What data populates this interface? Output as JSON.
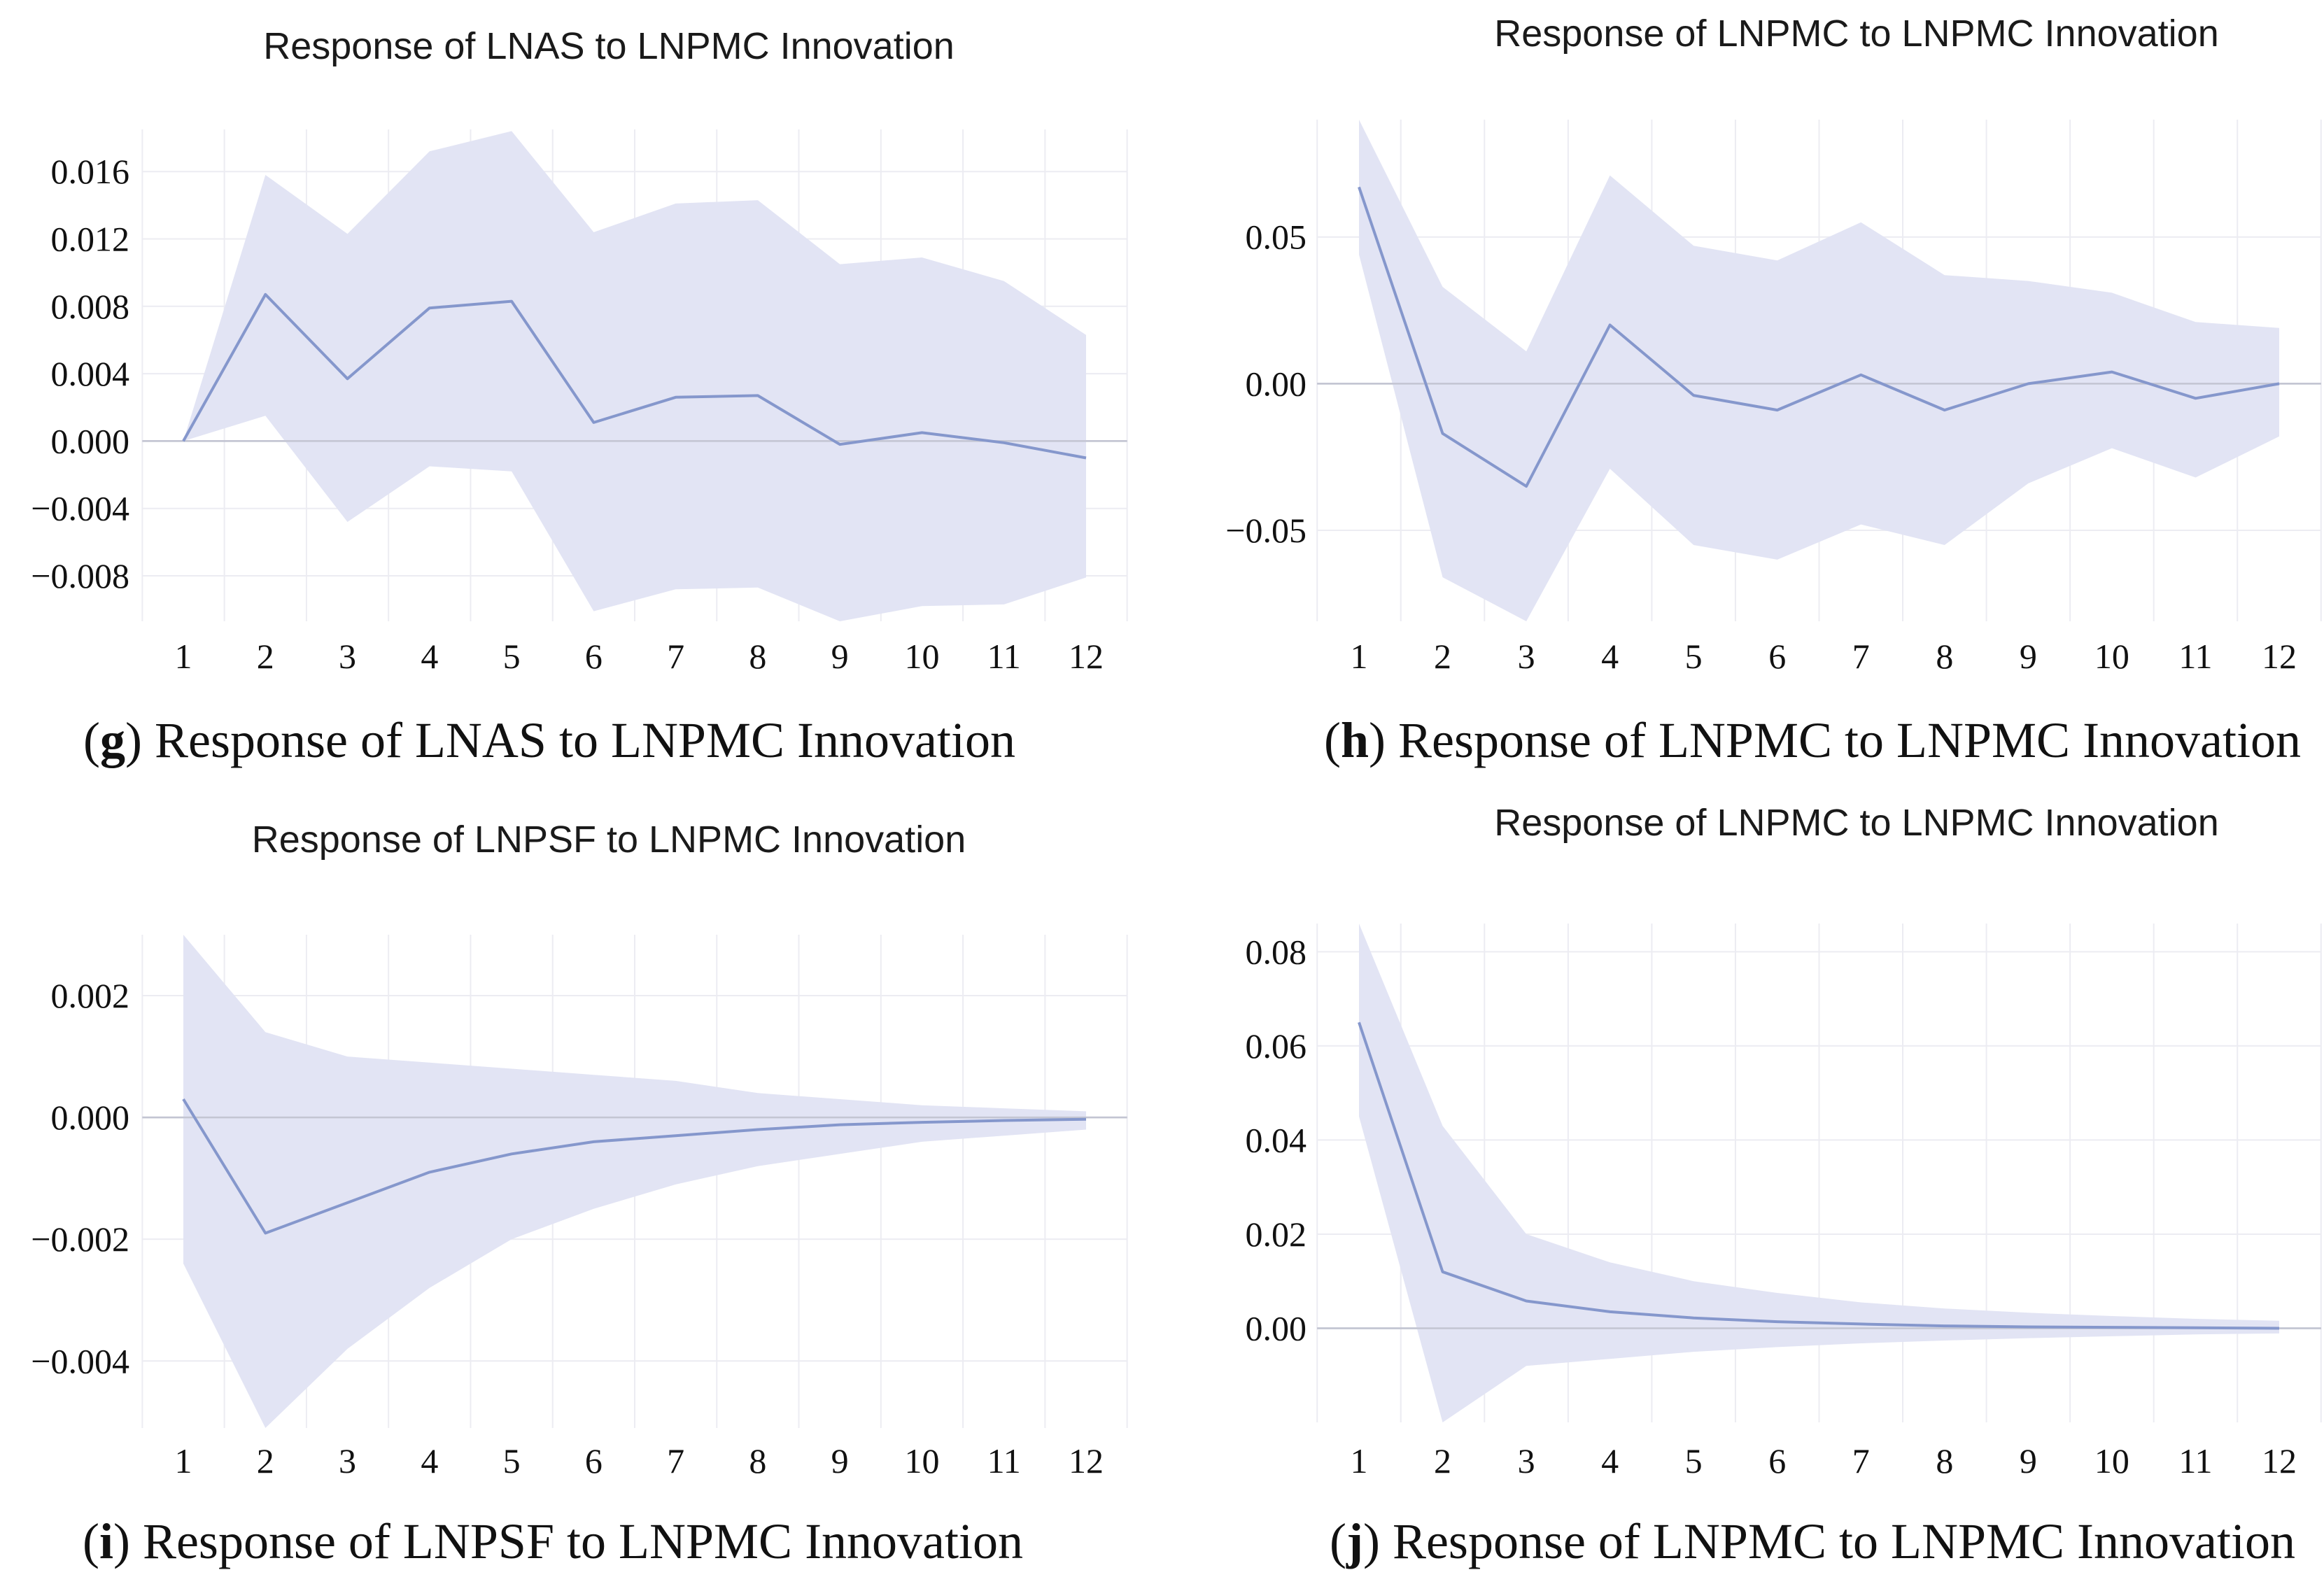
{
  "chart_data": [
    {
      "id": "g",
      "type": "line",
      "title": "Response of LNAS to LNPMC Innovation",
      "caption_label": "g",
      "caption_text": "Response of LNAS to LNPMC Innovation",
      "x": [
        1,
        2,
        3,
        4,
        5,
        6,
        7,
        8,
        9,
        10,
        11,
        12
      ],
      "x_tick_labels": [
        "1",
        "2",
        "3",
        "4",
        "5",
        "6",
        "7",
        "8",
        "9",
        "10",
        "11",
        "12"
      ],
      "y_ticks": [
        0.016,
        0.012,
        0.008,
        0.004,
        0.0,
        -0.004,
        -0.008
      ],
      "y_tick_labels": [
        "0.016",
        "0.012",
        "0.008",
        "0.004",
        "0.000",
        "−0.004",
        "−0.008"
      ],
      "ylim": [
        -0.0107,
        0.0185
      ],
      "series": [
        {
          "name": "response",
          "values": [
            0.0,
            0.0087,
            0.0037,
            0.0079,
            0.0083,
            0.0011,
            0.0026,
            0.0027,
            -0.0002,
            0.0005,
            -0.0001,
            -0.001
          ]
        },
        {
          "name": "upper",
          "values": [
            0.0,
            0.0158,
            0.0123,
            0.0172,
            0.0184,
            0.0124,
            0.0141,
            0.0143,
            0.0105,
            0.0109,
            0.0095,
            0.0063
          ]
        },
        {
          "name": "lower",
          "values": [
            0.0,
            0.0015,
            -0.0048,
            -0.0015,
            -0.0018,
            -0.0101,
            -0.0088,
            -0.0087,
            -0.0107,
            -0.0098,
            -0.0097,
            -0.0081
          ]
        }
      ]
    },
    {
      "id": "h",
      "type": "line",
      "title": "Response of LNPMC to LNPMC Innovation",
      "caption_label": "h",
      "caption_text": "Response of LNPMC to LNPMC Innovation",
      "x": [
        1,
        2,
        3,
        4,
        5,
        6,
        7,
        8,
        9,
        10,
        11,
        12
      ],
      "x_tick_labels": [
        "1",
        "2",
        "3",
        "4",
        "5",
        "6",
        "7",
        "8",
        "9",
        "10",
        "11",
        "12"
      ],
      "y_ticks": [
        0.05,
        0.0,
        -0.05
      ],
      "y_tick_labels": [
        "0.05",
        "0.00",
        "−0.05"
      ],
      "ylim": [
        -0.081,
        0.09
      ],
      "series": [
        {
          "name": "response",
          "values": [
            0.067,
            -0.017,
            -0.035,
            0.02,
            -0.004,
            -0.009,
            0.003,
            -0.009,
            0.0,
            0.004,
            -0.005,
            0.0
          ]
        },
        {
          "name": "upper",
          "values": [
            0.09,
            0.033,
            0.011,
            0.071,
            0.047,
            0.042,
            0.055,
            0.037,
            0.035,
            0.031,
            0.021,
            0.019
          ]
        },
        {
          "name": "lower",
          "values": [
            0.044,
            -0.066,
            -0.081,
            -0.029,
            -0.055,
            -0.06,
            -0.048,
            -0.055,
            -0.034,
            -0.022,
            -0.032,
            -0.018
          ]
        }
      ]
    },
    {
      "id": "i",
      "type": "line",
      "title": "Response of LNPSF to LNPMC Innovation",
      "caption_label": "i",
      "caption_text": "Response of LNPSF to LNPMC Innovation",
      "x": [
        1,
        2,
        3,
        4,
        5,
        6,
        7,
        8,
        9,
        10,
        11,
        12
      ],
      "x_tick_labels": [
        "1",
        "2",
        "3",
        "4",
        "5",
        "6",
        "7",
        "8",
        "9",
        "10",
        "11",
        "12"
      ],
      "y_ticks": [
        0.002,
        0.0,
        -0.002,
        -0.004
      ],
      "y_tick_labels": [
        "0.002",
        "0.000",
        "−0.002",
        "−0.004"
      ],
      "ylim": [
        -0.0051,
        0.003
      ],
      "series": [
        {
          "name": "response",
          "values": [
            0.0003,
            -0.0019,
            -0.0014,
            -0.0009,
            -0.0006,
            -0.0004,
            -0.0003,
            -0.0002,
            -0.00012,
            -8e-05,
            -5e-05,
            -3e-05
          ]
        },
        {
          "name": "upper",
          "values": [
            0.003,
            0.0014,
            0.001,
            0.0009,
            0.0008,
            0.0007,
            0.0006,
            0.0004,
            0.0003,
            0.0002,
            0.00015,
            0.0001
          ]
        },
        {
          "name": "lower",
          "values": [
            -0.0024,
            -0.0051,
            -0.0038,
            -0.0028,
            -0.002,
            -0.0015,
            -0.0011,
            -0.0008,
            -0.0006,
            -0.0004,
            -0.0003,
            -0.0002
          ]
        }
      ]
    },
    {
      "id": "j",
      "type": "line",
      "title": "Response of LNPMC to LNPMC Innovation",
      "caption_label": "j",
      "caption_text": "Response of LNPMC to LNPMC Innovation",
      "x": [
        1,
        2,
        3,
        4,
        5,
        6,
        7,
        8,
        9,
        10,
        11,
        12
      ],
      "x_tick_labels": [
        "1",
        "2",
        "3",
        "4",
        "5",
        "6",
        "7",
        "8",
        "9",
        "10",
        "11",
        "12"
      ],
      "y_ticks": [
        0.08,
        0.06,
        0.04,
        0.02,
        0.0
      ],
      "y_tick_labels": [
        "0.08",
        "0.06",
        "0.04",
        "0.02",
        "0.00"
      ],
      "ylim": [
        -0.02,
        0.086
      ],
      "series": [
        {
          "name": "response",
          "values": [
            0.065,
            0.012,
            0.0058,
            0.0035,
            0.0022,
            0.0014,
            0.0009,
            0.0005,
            0.0003,
            0.0002,
            0.0001,
            0.0
          ]
        },
        {
          "name": "upper",
          "values": [
            0.086,
            0.043,
            0.02,
            0.014,
            0.01,
            0.0075,
            0.0055,
            0.0042,
            0.0033,
            0.0026,
            0.002,
            0.0016
          ]
        },
        {
          "name": "lower",
          "values": [
            0.045,
            -0.02,
            -0.008,
            -0.0065,
            -0.005,
            -0.004,
            -0.0032,
            -0.0026,
            -0.0021,
            -0.0017,
            -0.0013,
            -0.0011
          ]
        }
      ]
    }
  ]
}
